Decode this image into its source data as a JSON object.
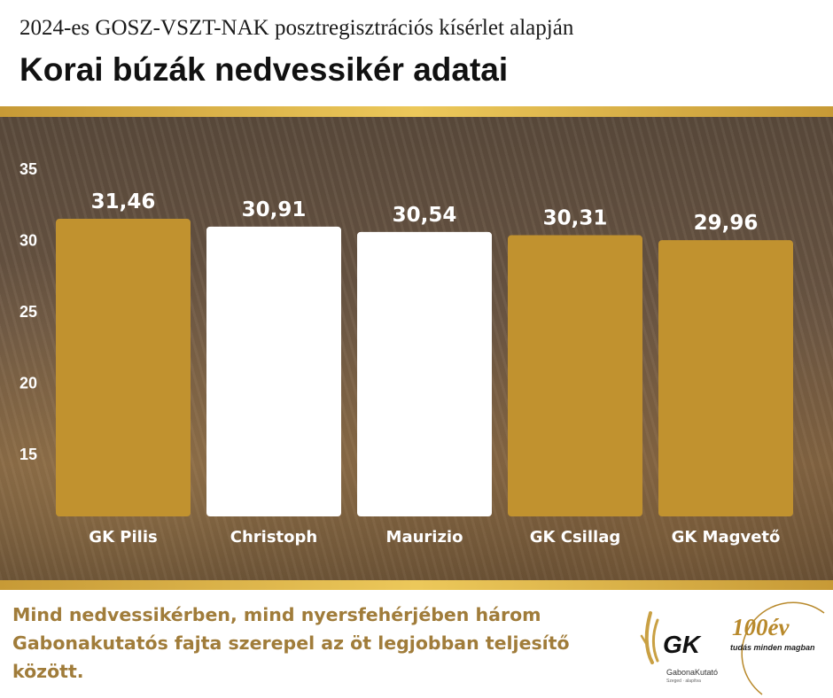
{
  "header": {
    "subtitle": "2024-es GOSZ-VSZT-NAK  posztregisztrációs kísérlet alapján",
    "title": "Korai búzák nedvessikér adatai"
  },
  "chart_data": {
    "type": "bar",
    "categories": [
      "GK Pilis",
      "Christoph",
      "Maurizio",
      "GK Csillag",
      "GK Magvető"
    ],
    "values": [
      31.46,
      30.91,
      30.54,
      30.31,
      29.96
    ],
    "value_labels": [
      "31,46",
      "30,91",
      "30,54",
      "30,31",
      "29,96"
    ],
    "bar_colors": [
      "#c1922f",
      "#ffffff",
      "#ffffff",
      "#c1922f",
      "#c1922f"
    ],
    "yticks": [
      15,
      20,
      25,
      30,
      35
    ],
    "ylim": [
      10.6,
      35
    ],
    "grid": false,
    "legend": "none"
  },
  "caption": {
    "text": "Mind nedvessikérben, mind nyersfehérjében három Gabonakutatós fajta szerepel az öt legjobban teljesítő között."
  },
  "logo": {
    "brand": "GK",
    "name": "GabonaKutató",
    "location": "Szeged · alapítva",
    "anniversary": "100év",
    "tagline": "tudás minden magban"
  },
  "colors": {
    "gold": "#c1922f",
    "caption": "#a07c3a",
    "stripe": "#e2bb51"
  }
}
